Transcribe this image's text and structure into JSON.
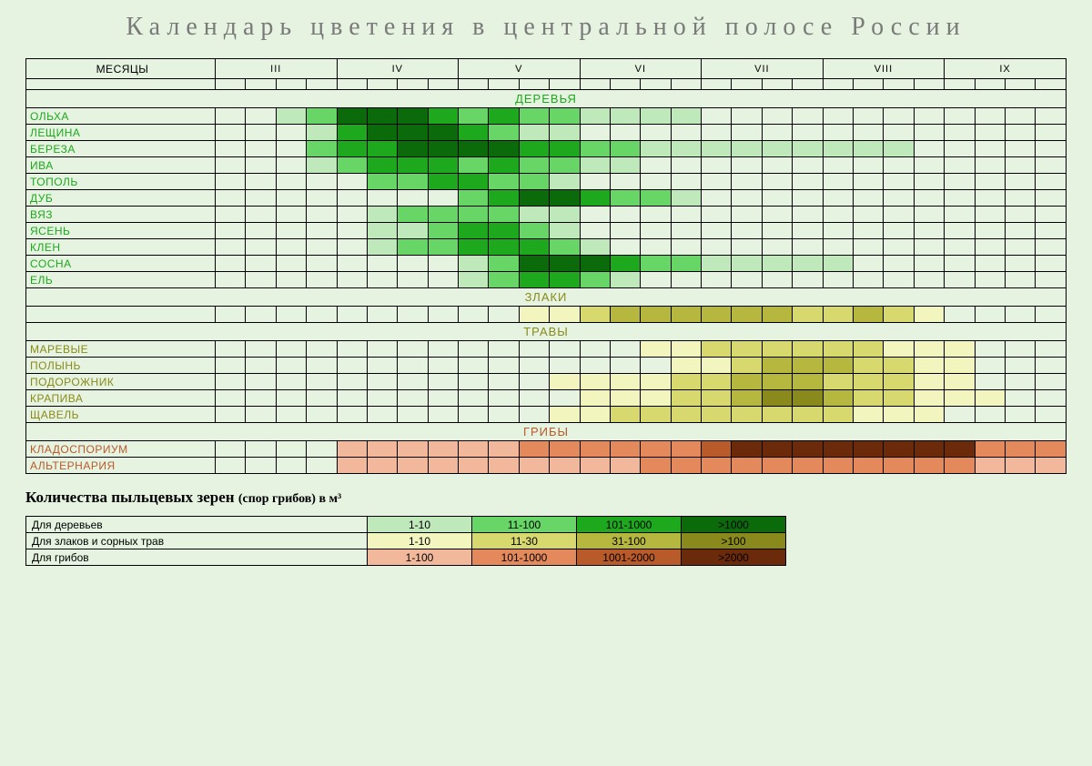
{
  "title": "Календарь цветения в центральной полосе России",
  "background_color": "#e5f3e0",
  "grid_border_color": "#000000",
  "months_label": "МЕСЯЦЫ",
  "months": [
    "III",
    "IV",
    "V",
    "VI",
    "VII",
    "VIII",
    "IX"
  ],
  "subdivisions_per_month": 4,
  "palettes": {
    "trees": {
      "0": null,
      "1": "#bfe8bb",
      "2": "#67d667",
      "3": "#1ea81e",
      "4": "#0b6b0b"
    },
    "grass": {
      "0": null,
      "1": "#f3f5be",
      "2": "#d7d96f",
      "3": "#b5b73e",
      "4": "#8a8a1c"
    },
    "fungi": {
      "0": null,
      "1": "#f2b89c",
      "2": "#e3895c",
      "3": "#b85a2a",
      "4": "#6b2a0a"
    }
  },
  "sections": [
    {
      "id": "trees",
      "header": "ДЕРЕВЬЯ",
      "header_color": "#1ea81e",
      "label_color": "#1ea81e",
      "palette": "trees",
      "rows": [
        {
          "name": "ОЛЬХА",
          "cells": [
            0,
            0,
            1,
            2,
            4,
            4,
            4,
            3,
            2,
            3,
            2,
            2,
            1,
            1,
            1,
            1,
            0,
            0,
            0,
            0,
            0,
            0,
            0,
            0,
            0,
            0,
            0,
            0
          ]
        },
        {
          "name": "ЛЕЩИНА",
          "cells": [
            0,
            0,
            0,
            1,
            3,
            4,
            4,
            4,
            3,
            2,
            1,
            1,
            0,
            0,
            0,
            0,
            0,
            0,
            0,
            0,
            0,
            0,
            0,
            0,
            0,
            0,
            0,
            0
          ]
        },
        {
          "name": "БЕРЕЗА",
          "cells": [
            0,
            0,
            0,
            2,
            3,
            3,
            4,
            4,
            4,
            4,
            3,
            3,
            2,
            2,
            1,
            1,
            1,
            1,
            1,
            1,
            1,
            1,
            1,
            0,
            0,
            0,
            0,
            0
          ]
        },
        {
          "name": "ИВА",
          "cells": [
            0,
            0,
            0,
            1,
            2,
            3,
            3,
            3,
            2,
            3,
            2,
            2,
            1,
            1,
            0,
            0,
            0,
            0,
            0,
            0,
            0,
            0,
            0,
            0,
            0,
            0,
            0,
            0
          ]
        },
        {
          "name": "ТОПОЛЬ",
          "cells": [
            0,
            0,
            0,
            0,
            0,
            2,
            2,
            3,
            3,
            2,
            2,
            1,
            0,
            0,
            0,
            0,
            0,
            0,
            0,
            0,
            0,
            0,
            0,
            0,
            0,
            0,
            0,
            0
          ]
        },
        {
          "name": "ДУБ",
          "cells": [
            0,
            0,
            0,
            0,
            0,
            0,
            0,
            0,
            2,
            3,
            4,
            4,
            3,
            2,
            2,
            1,
            0,
            0,
            0,
            0,
            0,
            0,
            0,
            0,
            0,
            0,
            0,
            0
          ]
        },
        {
          "name": "ВЯЗ",
          "cells": [
            0,
            0,
            0,
            0,
            0,
            1,
            2,
            2,
            2,
            2,
            1,
            1,
            0,
            0,
            0,
            0,
            0,
            0,
            0,
            0,
            0,
            0,
            0,
            0,
            0,
            0,
            0,
            0
          ]
        },
        {
          "name": "ЯСЕНЬ",
          "cells": [
            0,
            0,
            0,
            0,
            0,
            1,
            1,
            2,
            3,
            3,
            2,
            1,
            0,
            0,
            0,
            0,
            0,
            0,
            0,
            0,
            0,
            0,
            0,
            0,
            0,
            0,
            0,
            0
          ]
        },
        {
          "name": "КЛЕН",
          "cells": [
            0,
            0,
            0,
            0,
            0,
            1,
            2,
            2,
            3,
            3,
            3,
            2,
            1,
            0,
            0,
            0,
            0,
            0,
            0,
            0,
            0,
            0,
            0,
            0,
            0,
            0,
            0,
            0
          ]
        },
        {
          "name": "СОСНА",
          "cells": [
            0,
            0,
            0,
            0,
            0,
            0,
            0,
            0,
            1,
            2,
            4,
            4,
            4,
            3,
            2,
            2,
            1,
            1,
            1,
            1,
            1,
            0,
            0,
            0,
            0,
            0,
            0,
            0
          ]
        },
        {
          "name": "ЕЛЬ",
          "cells": [
            0,
            0,
            0,
            0,
            0,
            0,
            0,
            0,
            1,
            2,
            3,
            3,
            2,
            1,
            0,
            0,
            0,
            0,
            0,
            0,
            0,
            0,
            0,
            0,
            0,
            0,
            0,
            0
          ]
        }
      ]
    },
    {
      "id": "cereals",
      "header": "ЗЛАКИ",
      "header_color": "#8a8a1c",
      "label_color": "#8a8a1c",
      "palette": "grass",
      "rows": [
        {
          "name": "",
          "cells": [
            0,
            0,
            0,
            0,
            0,
            0,
            0,
            0,
            0,
            0,
            1,
            1,
            2,
            3,
            3,
            3,
            3,
            3,
            3,
            2,
            2,
            3,
            2,
            1,
            0,
            0,
            0,
            0
          ]
        }
      ]
    },
    {
      "id": "herbs",
      "header": "ТРАВЫ",
      "header_color": "#8a8a1c",
      "label_color": "#8a8a1c",
      "palette": "grass",
      "rows": [
        {
          "name": "МАРЕВЫЕ",
          "cells": [
            0,
            0,
            0,
            0,
            0,
            0,
            0,
            0,
            0,
            0,
            0,
            0,
            0,
            0,
            1,
            1,
            2,
            2,
            2,
            2,
            2,
            2,
            1,
            1,
            1,
            0,
            0,
            0
          ]
        },
        {
          "name": "ПОЛЫНЬ",
          "cells": [
            0,
            0,
            0,
            0,
            0,
            0,
            0,
            0,
            0,
            0,
            0,
            0,
            0,
            0,
            0,
            1,
            1,
            2,
            3,
            3,
            3,
            2,
            2,
            1,
            1,
            0,
            0,
            0
          ]
        },
        {
          "name": "ПОДОРОЖНИК",
          "cells": [
            0,
            0,
            0,
            0,
            0,
            0,
            0,
            0,
            0,
            0,
            0,
            1,
            1,
            1,
            1,
            2,
            2,
            3,
            3,
            3,
            2,
            2,
            2,
            1,
            1,
            0,
            0,
            0
          ]
        },
        {
          "name": "КРАПИВА",
          "cells": [
            0,
            0,
            0,
            0,
            0,
            0,
            0,
            0,
            0,
            0,
            0,
            0,
            1,
            1,
            1,
            2,
            2,
            3,
            4,
            4,
            3,
            2,
            2,
            1,
            1,
            1,
            0,
            0
          ]
        },
        {
          "name": "ЩАВЕЛЬ",
          "cells": [
            0,
            0,
            0,
            0,
            0,
            0,
            0,
            0,
            0,
            0,
            0,
            1,
            1,
            2,
            2,
            2,
            2,
            2,
            2,
            2,
            2,
            1,
            1,
            1,
            0,
            0,
            0,
            0
          ]
        }
      ]
    },
    {
      "id": "fungi",
      "header": "ГРИБЫ",
      "header_color": "#b85a2a",
      "label_color": "#b85a2a",
      "palette": "fungi",
      "rows": [
        {
          "name": "КЛАДОСПОРИУМ",
          "cells": [
            0,
            0,
            0,
            0,
            1,
            1,
            1,
            1,
            1,
            1,
            2,
            2,
            2,
            2,
            2,
            2,
            3,
            4,
            4,
            4,
            4,
            4,
            4,
            4,
            4,
            2,
            2,
            2
          ]
        },
        {
          "name": "АЛЬТЕРНАРИЯ",
          "cells": [
            0,
            0,
            0,
            0,
            1,
            1,
            1,
            1,
            1,
            1,
            1,
            1,
            1,
            1,
            2,
            2,
            2,
            2,
            2,
            2,
            2,
            2,
            2,
            2,
            2,
            1,
            1,
            1
          ]
        }
      ]
    }
  ],
  "legend": {
    "title": "Количества пыльцевых зерен",
    "title_small": "(спор грибов) в м³",
    "rows": [
      {
        "label": "Для деревьев",
        "palette": "trees",
        "levels": [
          {
            "t": "1-10"
          },
          {
            "t": "11-100"
          },
          {
            "t": "101-1000"
          },
          {
            "t": ">1000"
          }
        ]
      },
      {
        "label": "Для злаков и сорных трав",
        "palette": "grass",
        "levels": [
          {
            "t": "1-10"
          },
          {
            "t": "11-30"
          },
          {
            "t": "31-100"
          },
          {
            "t": ">100"
          }
        ]
      },
      {
        "label": "Для грибов",
        "palette": "fungi",
        "levels": [
          {
            "t": "1-100"
          },
          {
            "t": "101-1000"
          },
          {
            "t": "1001-2000"
          },
          {
            "t": ">2000"
          }
        ]
      }
    ]
  }
}
